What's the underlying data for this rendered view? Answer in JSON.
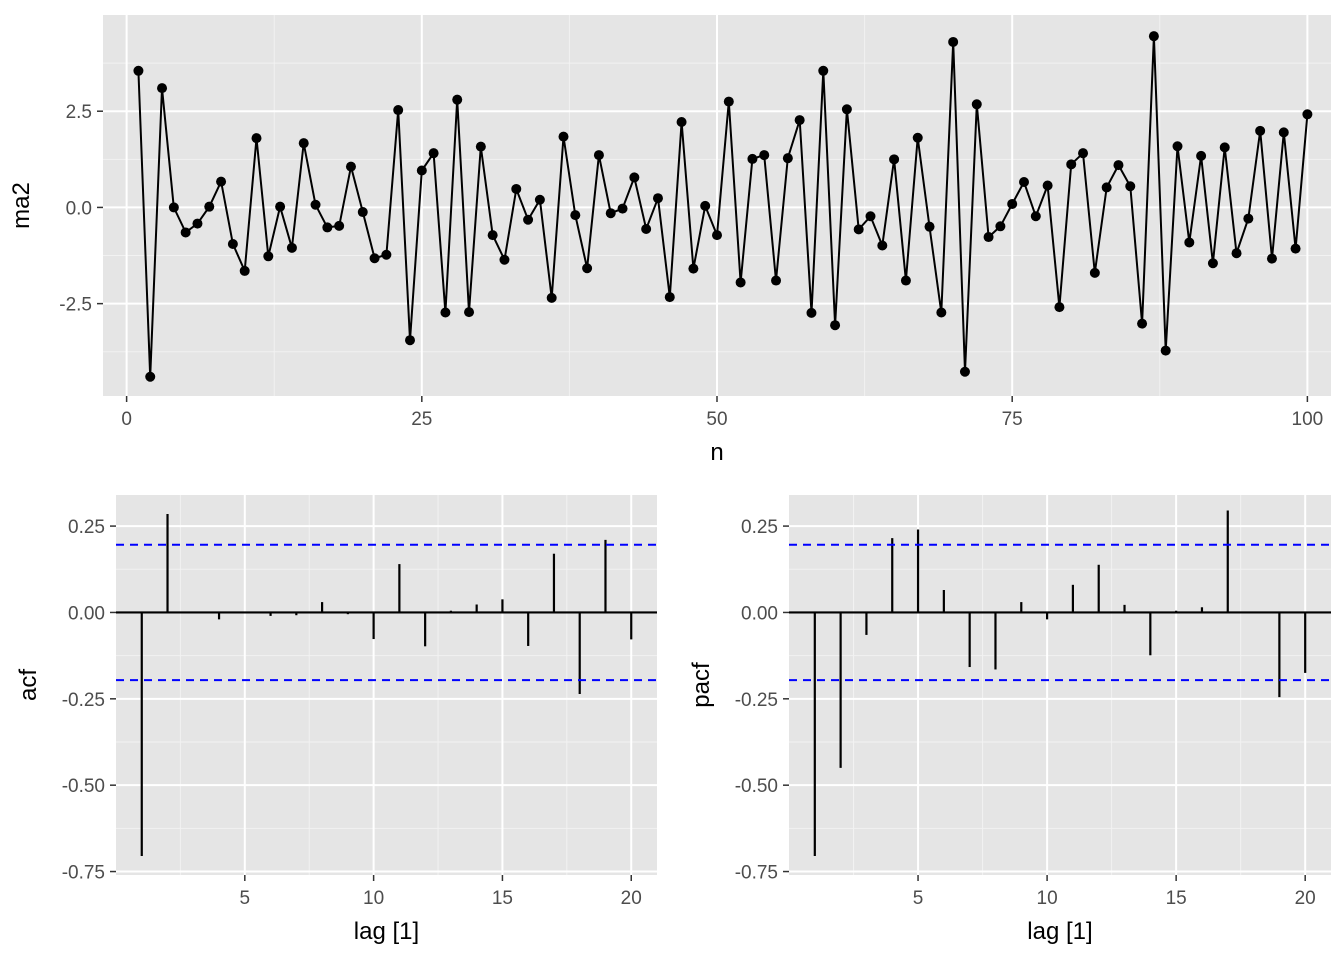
{
  "chart_data": [
    {
      "type": "line",
      "xlabel": "n",
      "ylabel": "ma2",
      "xlim": [
        -2,
        102
      ],
      "ylim": [
        -4.9,
        5
      ],
      "x_ticks": [
        0,
        25,
        50,
        75,
        100
      ],
      "x_tick_labels": [
        "0",
        "25",
        "50",
        "75",
        "100"
      ],
      "y_ticks": [
        -2.5,
        0,
        2.5
      ],
      "y_tick_labels": [
        "-2.5",
        "0.0",
        "2.5"
      ],
      "grid": true,
      "markers": true,
      "series": [
        {
          "x": [
            1,
            2,
            3,
            4,
            5,
            6,
            7,
            8,
            9,
            10,
            11,
            12,
            13,
            14,
            15,
            16,
            17,
            18,
            19,
            20,
            21,
            22,
            23,
            24,
            25,
            26,
            27,
            28,
            29,
            30,
            31,
            32,
            33,
            34,
            35,
            36,
            37,
            38,
            39,
            40,
            41,
            42,
            43,
            44,
            45,
            46,
            47,
            48,
            49,
            50,
            51,
            52,
            53,
            54,
            55,
            56,
            57,
            58,
            59,
            60,
            61,
            62,
            63,
            64,
            65,
            66,
            67,
            68,
            69,
            70,
            71,
            72,
            73,
            74,
            75,
            76,
            77,
            78,
            79,
            80,
            81,
            82,
            83,
            84,
            85,
            86,
            87,
            88,
            89,
            90,
            91,
            92,
            93,
            94,
            95,
            96,
            97,
            98,
            99,
            100
          ],
          "values": [
            3.55,
            -4.4,
            3.1,
            0,
            -0.65,
            -0.42,
            0.02,
            0.67,
            -0.95,
            -1.65,
            1.8,
            -1.27,
            0.02,
            -1.05,
            1.67,
            0.07,
            -0.52,
            -0.48,
            1.06,
            -0.12,
            -1.32,
            -1.23,
            2.53,
            -3.45,
            0.96,
            1.41,
            -2.73,
            2.8,
            -2.72,
            1.58,
            -0.72,
            -1.36,
            0.48,
            -0.32,
            0.2,
            -2.35,
            1.84,
            -0.2,
            -1.58,
            1.36,
            -0.15,
            -0.03,
            0.78,
            -0.56,
            0.24,
            -2.33,
            2.22,
            -1.59,
            0.04,
            -0.72,
            2.75,
            -1.95,
            1.26,
            1.36,
            -1.9,
            1.28,
            2.27,
            -2.74,
            3.55,
            -3.06,
            2.55,
            -0.57,
            -0.23,
            -0.99,
            1.25,
            -1.9,
            1.81,
            -0.5,
            -2.73,
            4.3,
            -4.27,
            2.68,
            -0.77,
            -0.49,
            0.09,
            0.66,
            -0.23,
            0.57,
            -2.59,
            1.12,
            1.41,
            -1.7,
            0.52,
            1.1,
            0.55,
            -3.02,
            4.45,
            -3.72,
            1.59,
            -0.91,
            1.34,
            -1.45,
            1.56,
            -1.19,
            -0.29,
            1.99,
            -1.33,
            1.95,
            -1.07,
            2.42
          ]
        }
      ]
    },
    {
      "type": "bar",
      "xlabel": "lag [1]",
      "ylabel": "acf",
      "xlim": [
        0.0,
        21.0
      ],
      "ylim": [
        -0.76,
        0.34
      ],
      "x_ticks": [
        5,
        10,
        15,
        20
      ],
      "x_tick_labels": [
        "5",
        "10",
        "15",
        "20"
      ],
      "y_ticks": [
        -0.75,
        -0.5,
        -0.25,
        0,
        0.25
      ],
      "y_tick_labels": [
        "-0.75",
        "-0.50",
        "-0.25",
        "0.00",
        "0.25"
      ],
      "grid": true,
      "confidence_bound": 0.196,
      "x": [
        1,
        2,
        3,
        4,
        5,
        6,
        7,
        8,
        9,
        10,
        11,
        12,
        13,
        14,
        15,
        16,
        17,
        18,
        19,
        20
      ],
      "values": [
        -0.705,
        0.285,
        0.0,
        -0.02,
        0.0,
        -0.01,
        -0.008,
        0.03,
        -0.005,
        -0.077,
        0.14,
        -0.098,
        0.005,
        0.023,
        0.038,
        -0.097,
        0.17,
        -0.236,
        0.21,
        -0.078
      ]
    },
    {
      "type": "bar",
      "xlabel": "lag [1]",
      "ylabel": "pacf",
      "xlim": [
        0.0,
        21.0
      ],
      "ylim": [
        -0.76,
        0.34
      ],
      "x_ticks": [
        5,
        10,
        15,
        20
      ],
      "x_tick_labels": [
        "5",
        "10",
        "15",
        "20"
      ],
      "y_ticks": [
        -0.75,
        -0.5,
        -0.25,
        0,
        0.25
      ],
      "y_tick_labels": [
        "-0.75",
        "-0.50",
        "-0.25",
        "0.00",
        "0.25"
      ],
      "grid": true,
      "confidence_bound": 0.196,
      "x": [
        1,
        2,
        3,
        4,
        5,
        6,
        7,
        8,
        9,
        10,
        11,
        12,
        13,
        14,
        15,
        16,
        17,
        18,
        19,
        20
      ],
      "values": [
        -0.705,
        -0.45,
        -0.065,
        0.215,
        0.24,
        0.065,
        -0.158,
        -0.165,
        0.03,
        -0.02,
        0.08,
        0.138,
        0.022,
        -0.124,
        0.005,
        0.015,
        0.295,
        0.0,
        -0.245,
        -0.175
      ]
    }
  ]
}
